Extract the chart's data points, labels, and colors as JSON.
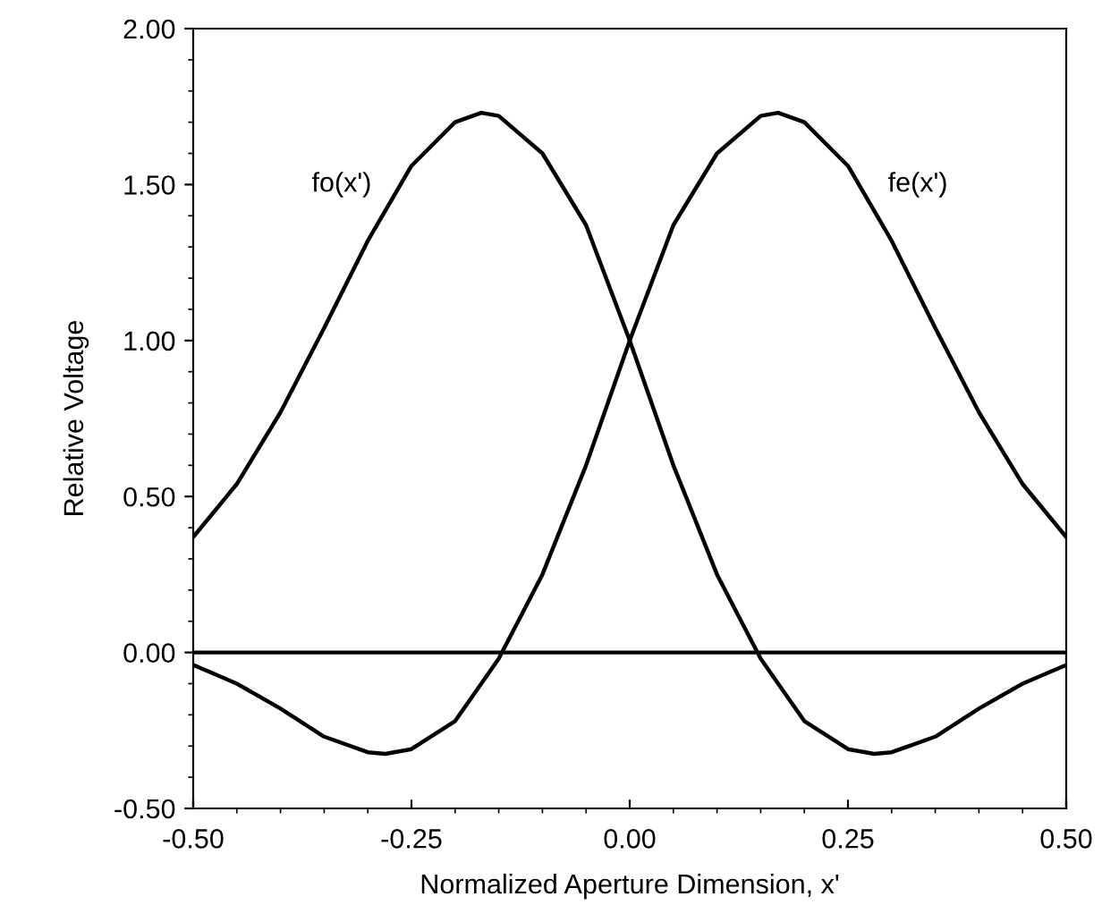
{
  "chart_data": {
    "type": "line",
    "xlabel": "Normalized Aperture Dimension, x'",
    "ylabel": "Relative Voltage",
    "series": [
      {
        "name": "fo(x')",
        "color": "#000000",
        "x": [
          -0.5,
          -0.45,
          -0.4,
          -0.35,
          -0.3,
          -0.25,
          -0.2,
          -0.17,
          -0.15,
          -0.1,
          -0.05,
          0,
          0.05,
          0.1,
          0.15,
          0.2,
          0.25,
          0.28,
          0.3,
          0.35,
          0.4,
          0.45,
          0.5
        ],
        "values": [
          0.37,
          0.54,
          0.77,
          1.04,
          1.32,
          1.56,
          1.7,
          1.73,
          1.72,
          1.6,
          1.37,
          1.0,
          0.6,
          0.25,
          -0.02,
          -0.22,
          -0.31,
          -0.325,
          -0.32,
          -0.27,
          -0.18,
          -0.1,
          -0.04
        ]
      },
      {
        "name": "fe(x')",
        "color": "#000000",
        "x": [
          -0.5,
          -0.45,
          -0.4,
          -0.35,
          -0.3,
          -0.28,
          -0.25,
          -0.2,
          -0.15,
          -0.1,
          -0.05,
          0,
          0.05,
          0.1,
          0.15,
          0.17,
          0.2,
          0.25,
          0.3,
          0.35,
          0.4,
          0.45,
          0.5
        ],
        "values": [
          -0.04,
          -0.1,
          -0.18,
          -0.27,
          -0.32,
          -0.325,
          -0.31,
          -0.22,
          -0.02,
          0.25,
          0.6,
          1.0,
          1.37,
          1.6,
          1.72,
          1.73,
          1.7,
          1.56,
          1.32,
          1.04,
          0.77,
          0.54,
          0.37
        ]
      }
    ],
    "ref_lines": [
      {
        "axis": "y",
        "value": 0,
        "color": "#000000"
      }
    ],
    "xlim": [
      -0.5,
      0.5
    ],
    "ylim": [
      -0.5,
      2.0
    ],
    "xticks": [
      {
        "value": -0.5,
        "label": "-0.50"
      },
      {
        "value": -0.25,
        "label": "-0.25"
      },
      {
        "value": 0,
        "label": "0.00"
      },
      {
        "value": 0.25,
        "label": "0.25"
      },
      {
        "value": 0.5,
        "label": "0.50"
      }
    ],
    "yticks": [
      {
        "value": -0.5,
        "label": "-0.50"
      },
      {
        "value": 0,
        "label": "0.00"
      },
      {
        "value": 0.5,
        "label": "0.50"
      },
      {
        "value": 1.0,
        "label": "1.00"
      },
      {
        "value": 1.5,
        "label": "1.50"
      },
      {
        "value": 2.0,
        "label": "2.00"
      }
    ],
    "grid": false,
    "legend": false,
    "marker": "none",
    "line_style": "solid"
  }
}
